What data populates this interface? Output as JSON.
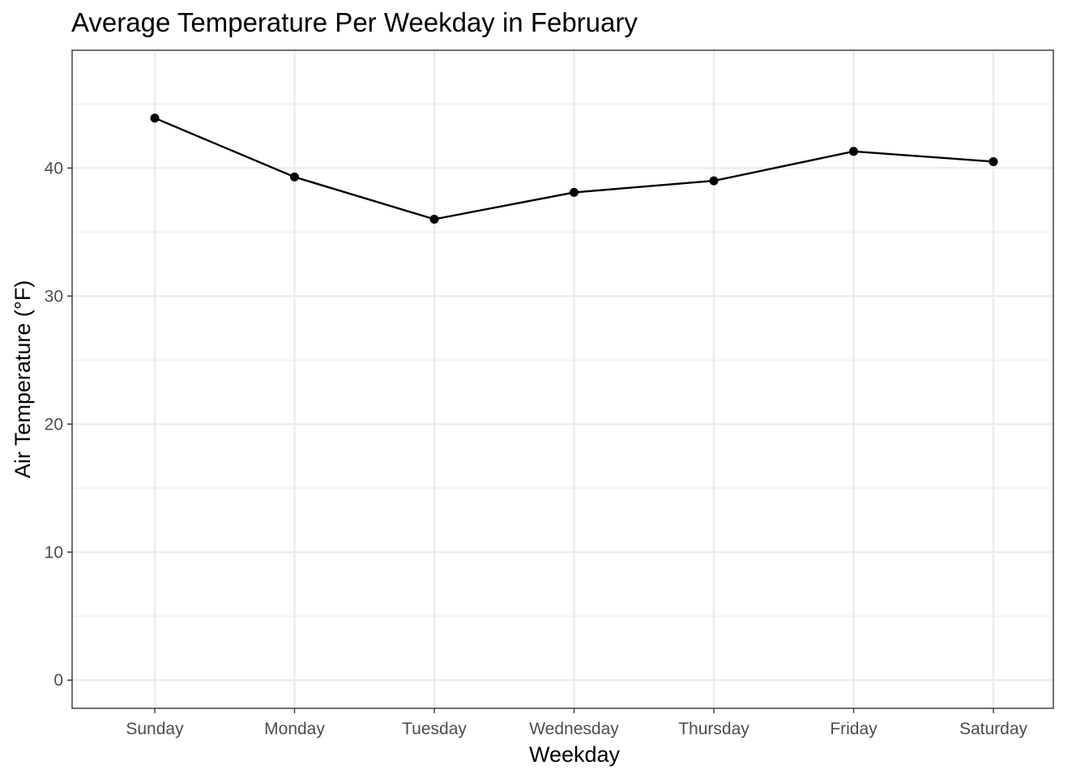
{
  "chart_data": {
    "type": "line",
    "title": "Average Temperature Per Weekday in February",
    "xlabel": "Weekday",
    "ylabel": "Air Temperature (°F)",
    "categories": [
      "Sunday",
      "Monday",
      "Tuesday",
      "Wednesday",
      "Thursday",
      "Friday",
      "Saturday"
    ],
    "values": [
      43.9,
      39.3,
      36.0,
      38.1,
      39.0,
      41.3,
      40.5
    ],
    "ylim": [
      -2.2,
      49.2
    ],
    "yticks": [
      0,
      10,
      20,
      30,
      40
    ],
    "ytick_labels": [
      "0",
      "10",
      "20",
      "30",
      "40"
    ],
    "grid": true,
    "legend": "none",
    "colors": {
      "line": "#000000",
      "point": "#000000",
      "grid": "#ebebeb",
      "panel_border": "#333333",
      "tick_label": "#4d4d4d",
      "background": "#ffffff"
    }
  }
}
